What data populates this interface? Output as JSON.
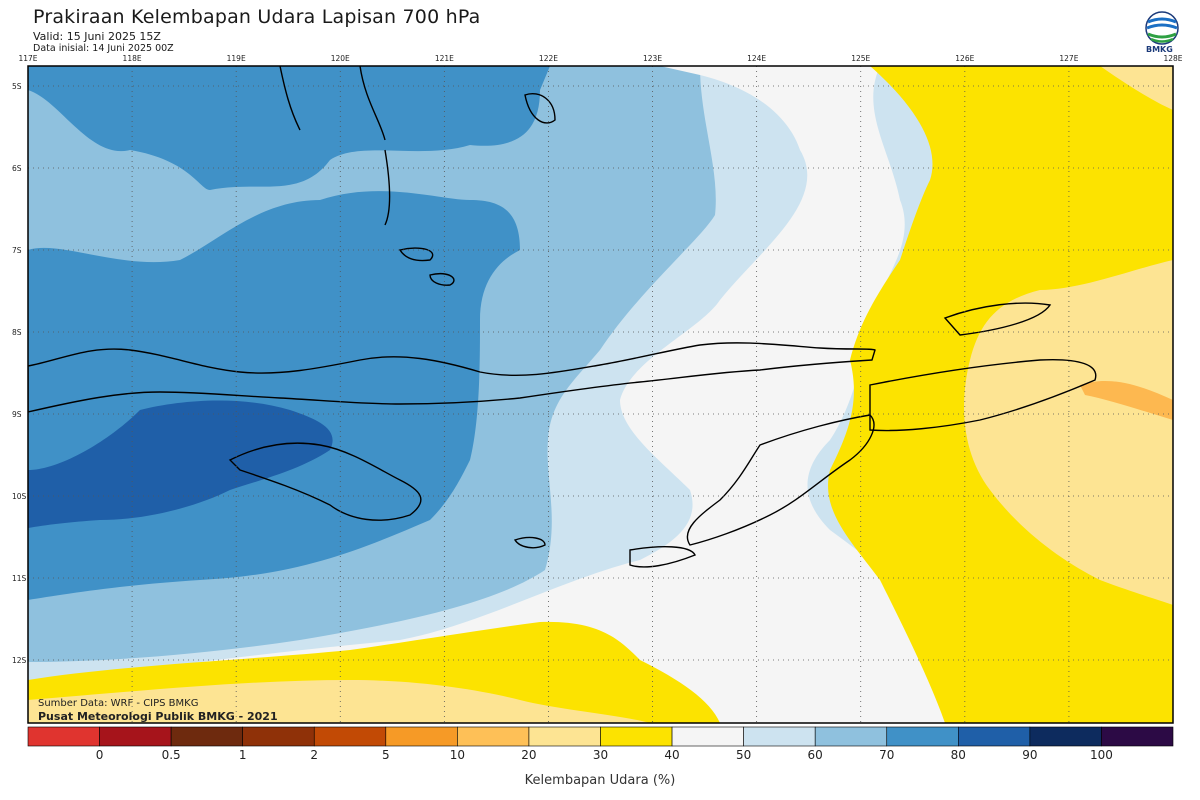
{
  "header": {
    "title": "Prakiraan Kelembapan Udara Lapisan 700 hPa",
    "valid": "Valid: 15 Juni 2025 15Z",
    "init": "Data inisial: 14 Juni 2025 00Z"
  },
  "logo": {
    "text": "BMKG",
    "icon": "bmkg-logo-icon"
  },
  "map": {
    "lon_labels": [
      "117E",
      "118E",
      "119E",
      "120E",
      "121E",
      "122E",
      "123E",
      "124E",
      "125E",
      "126E",
      "127E",
      "128E"
    ],
    "lat_labels": [
      "5S",
      "6S",
      "7S",
      "8S",
      "9S",
      "10S",
      "11S",
      "12S"
    ],
    "colors": {
      "h80": "#4091c7",
      "h90": "#1f5fa8",
      "h70": "#8fc1de",
      "h60": "#cde3f0",
      "h50": "#f5f5f5",
      "h40": "#fce300",
      "h30": "#fde493",
      "h20": "#fdb850",
      "coast": "#000000"
    }
  },
  "footer": {
    "source": "Sumber Data: WRF - CIPS BMKG",
    "center": "Pusat Meteorologi Publik BMKG - 2021"
  },
  "colorbar": {
    "title": "Kelembapan Udara (%)",
    "colors": [
      "#e0342f",
      "#a6141b",
      "#6e2a0e",
      "#8f3108",
      "#c24a05",
      "#f69a26",
      "#fec057",
      "#fde493",
      "#fce300",
      "#f5f5f5",
      "#cde3f0",
      "#8fc1de",
      "#4091c7",
      "#1f5fa8",
      "#0d2b5e",
      "#2c0a45"
    ],
    "labels": [
      "0",
      "0.5",
      "1",
      "2",
      "5",
      "10",
      "20",
      "30",
      "40",
      "50",
      "60",
      "70",
      "80",
      "90",
      "100"
    ]
  }
}
